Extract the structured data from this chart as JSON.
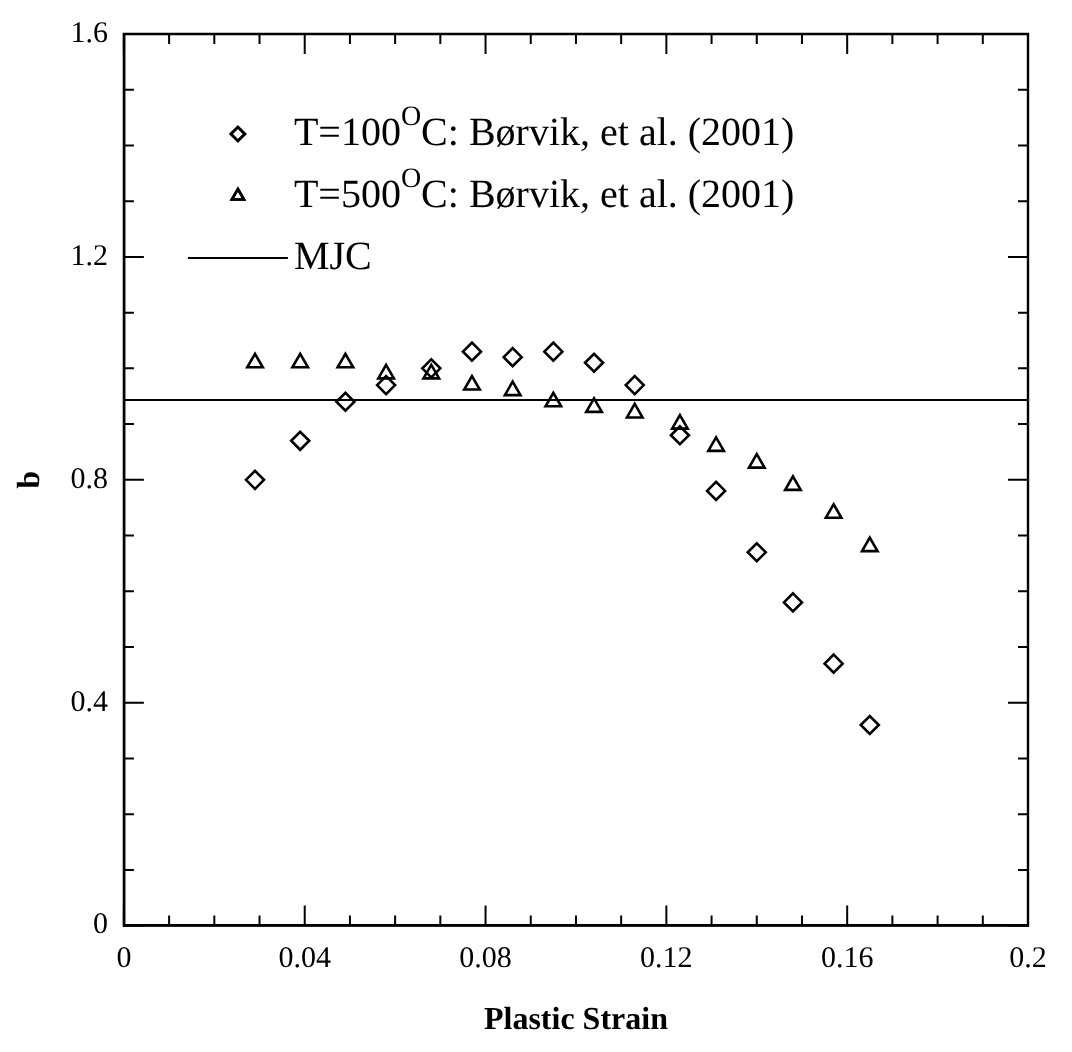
{
  "chart_data": {
    "type": "scatter",
    "xlabel": "Plastic Strain",
    "ylabel": "b",
    "xlim": [
      0,
      0.2
    ],
    "ylim": [
      0,
      1.6
    ],
    "xticks": [
      0,
      {
        "value": 0.01,
        "label": null
      },
      {
        "value": 0.02,
        "label": null
      },
      {
        "value": 0.03,
        "label": null
      },
      0.04,
      {
        "value": 0.05,
        "label": null
      },
      {
        "value": 0.06,
        "label": null
      },
      {
        "value": 0.07,
        "label": null
      },
      0.08,
      {
        "value": 0.09,
        "label": null
      },
      {
        "value": 0.1,
        "label": null
      },
      {
        "value": 0.11,
        "label": null
      },
      0.12,
      {
        "value": 0.13,
        "label": null
      },
      {
        "value": 0.14,
        "label": null
      },
      {
        "value": 0.15,
        "label": null
      },
      0.16,
      {
        "value": 0.17,
        "label": null
      },
      {
        "value": 0.18,
        "label": null
      },
      {
        "value": 0.19,
        "label": null
      },
      0.2
    ],
    "yticks": [
      0,
      {
        "value": 0.1,
        "label": null
      },
      {
        "value": 0.2,
        "label": null
      },
      {
        "value": 0.3,
        "label": null
      },
      0.4,
      {
        "value": 0.5,
        "label": null
      },
      {
        "value": 0.6,
        "label": null
      },
      {
        "value": 0.7,
        "label": null
      },
      0.8,
      {
        "value": 0.9,
        "label": null
      },
      {
        "value": 1.0,
        "label": null
      },
      {
        "value": 1.1,
        "label": null
      },
      1.2,
      {
        "value": 1.3,
        "label": null
      },
      {
        "value": 1.4,
        "label": null
      },
      {
        "value": 1.5,
        "label": null
      },
      1.6
    ],
    "grid": false,
    "legend": "top left",
    "series": [
      {
        "name": "T=100$^{O}$C: Børvik, et al. (2001)",
        "color": "#000000",
        "marker": "diamond",
        "x": [
          0.029,
          0.039,
          0.049,
          0.058,
          0.068,
          0.077,
          0.086,
          0.095,
          0.104,
          0.113,
          0.123,
          0.131,
          0.14,
          0.148,
          0.157,
          0.165
        ],
        "values": [
          0.8,
          0.87,
          0.94,
          0.97,
          1.0,
          1.03,
          1.02,
          1.03,
          1.01,
          0.97,
          0.88,
          0.78,
          0.67,
          0.58,
          0.47,
          0.36
        ]
      },
      {
        "name": "T=500$^{O}$C: Børvik, et al. (2001)",
        "color": "#000000",
        "marker": "triangle",
        "x": [
          0.029,
          0.039,
          0.049,
          0.058,
          0.068,
          0.077,
          0.086,
          0.095,
          0.104,
          0.113,
          0.123,
          0.131,
          0.14,
          0.148,
          0.157,
          0.165
        ],
        "values": [
          1.01,
          1.01,
          1.01,
          0.99,
          0.99,
          0.97,
          0.96,
          0.94,
          0.93,
          0.92,
          0.9,
          0.86,
          0.83,
          0.79,
          0.74,
          0.68
        ]
      },
      {
        "name": "MJC",
        "type": "line",
        "color": "#000000",
        "marker": "none",
        "line_style": "solid",
        "x": [
          0,
          0.2
        ],
        "values": [
          0.943,
          0.943
        ]
      }
    ]
  }
}
